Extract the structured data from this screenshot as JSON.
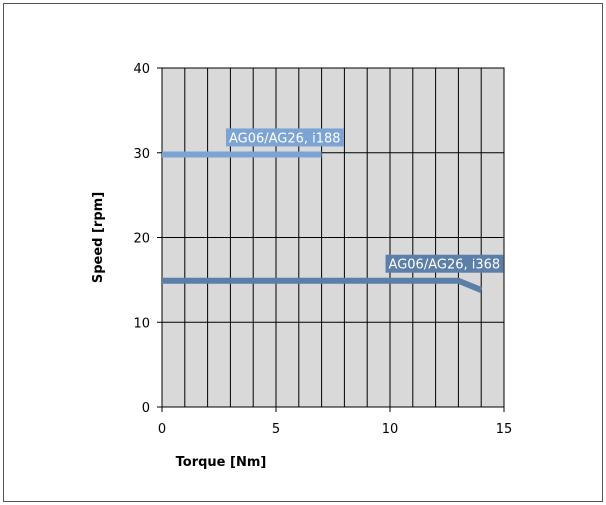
{
  "chart_data": {
    "type": "line",
    "title": "",
    "xlabel": "Torque [Nm]",
    "ylabel": "Speed [rpm]",
    "xlim": [
      0,
      15
    ],
    "ylim": [
      0,
      40
    ],
    "xticks": [
      0,
      5,
      10,
      15
    ],
    "yticks": [
      0,
      10,
      20,
      30,
      40
    ],
    "x_minor_step": 1,
    "y_major_step": 10,
    "grid": true,
    "legend": "none",
    "series": [
      {
        "name": "AG06/AG26, i188",
        "color": "#7ba3d4",
        "x": [
          0,
          7
        ],
        "y": [
          29.8,
          29.8
        ]
      },
      {
        "name": "AG06/AG26, i368",
        "color": "#5b7fa8",
        "x": [
          0,
          13,
          14
        ],
        "y": [
          14.9,
          14.9,
          13.8
        ]
      }
    ]
  },
  "colors": {
    "plot_background": "#d9d9d9",
    "grid_line": "#000000"
  }
}
